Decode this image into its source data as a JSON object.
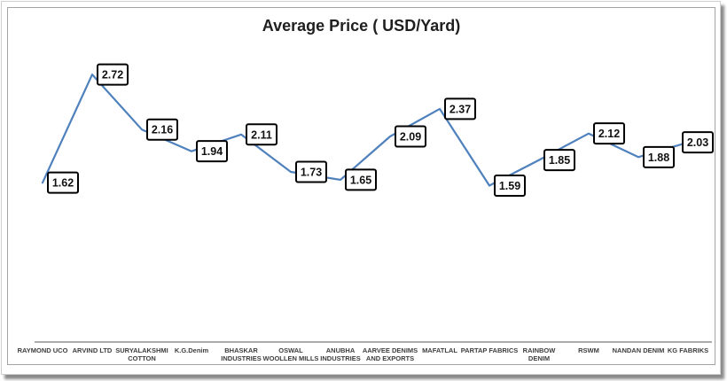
{
  "chart_data": {
    "type": "line",
    "title": "Average Price ( USD/Yard)",
    "categories": [
      "RAYMOND UCO",
      "ARVIND LTD",
      "SURYALAKSHMI COTTON",
      "K.G.Denim",
      "BHASKAR INDUSTRIES",
      "OSWAL WOOLLEN MILLS",
      "ANUBHA INDUSTRIES",
      "AARVEE DENIMS AND EXPORTS",
      "MAFATLAL",
      "PARTAP FABRICS",
      "RAINBOW DENIM",
      "RSWM",
      "NANDAN DENIM",
      "KG FABRIKS"
    ],
    "category_lines": [
      [
        "RAYMOND UCO"
      ],
      [
        "ARVIND LTD"
      ],
      [
        "SURYALAKSHMI",
        "COTTON"
      ],
      [
        "K.G.Denim"
      ],
      [
        "BHASKAR",
        "INDUSTRIES"
      ],
      [
        "OSWAL",
        "WOOLLEN MILLS"
      ],
      [
        "ANUBHA",
        "INDUSTRIES"
      ],
      [
        "AARVEE DENIMS",
        "AND EXPORTS"
      ],
      [
        "MAFATLAL"
      ],
      [
        "PARTAP FABRICS"
      ],
      [
        "RAINBOW",
        "DENIM"
      ],
      [
        "RSWM"
      ],
      [
        "NANDAN DENIM"
      ],
      [
        "KG FABRIKS"
      ]
    ],
    "values": [
      1.62,
      2.72,
      2.16,
      1.94,
      2.11,
      1.73,
      1.65,
      2.09,
      2.37,
      1.59,
      1.85,
      2.12,
      1.88,
      2.03
    ],
    "ylim": [
      0,
      3
    ],
    "xlabel": "",
    "ylabel": "",
    "grid": false,
    "legend": "none",
    "data_labels": "boxed values beside each point",
    "colors": {
      "line": "#4F81BD",
      "data_label_bg": "#FFFFFF",
      "data_label_border": "#000000",
      "data_label_text": "#111111",
      "axis_line": "#595959",
      "category_text": "#3D3D3D",
      "title_text": "#1F1F1F"
    }
  }
}
